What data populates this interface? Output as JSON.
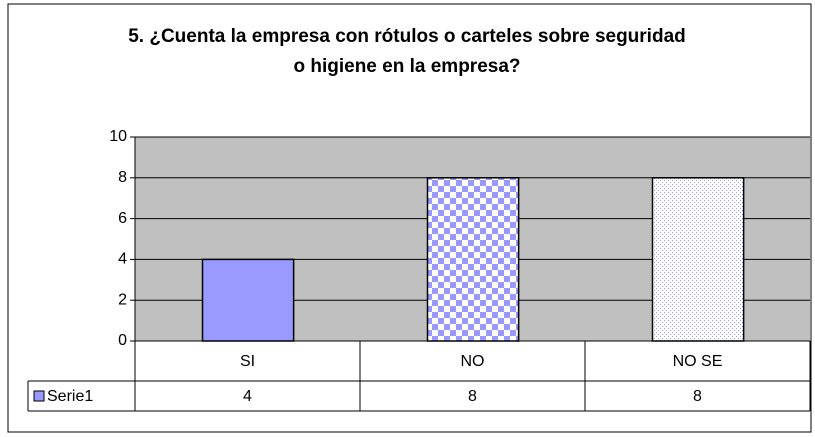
{
  "chart_data": {
    "type": "bar",
    "title": "5. ¿Cuenta la empresa con rótulos o carteles sobre seguridad o higiene en la empresa?",
    "categories": [
      "SI",
      "NO",
      "NO SE"
    ],
    "series": [
      {
        "name": "Serie1",
        "color": "#9999ff",
        "values": [
          4,
          8,
          8
        ]
      }
    ],
    "ylim": [
      0,
      10
    ],
    "yticks": [
      0,
      2,
      4,
      6,
      8,
      10
    ],
    "grid": true,
    "data_table": true
  }
}
